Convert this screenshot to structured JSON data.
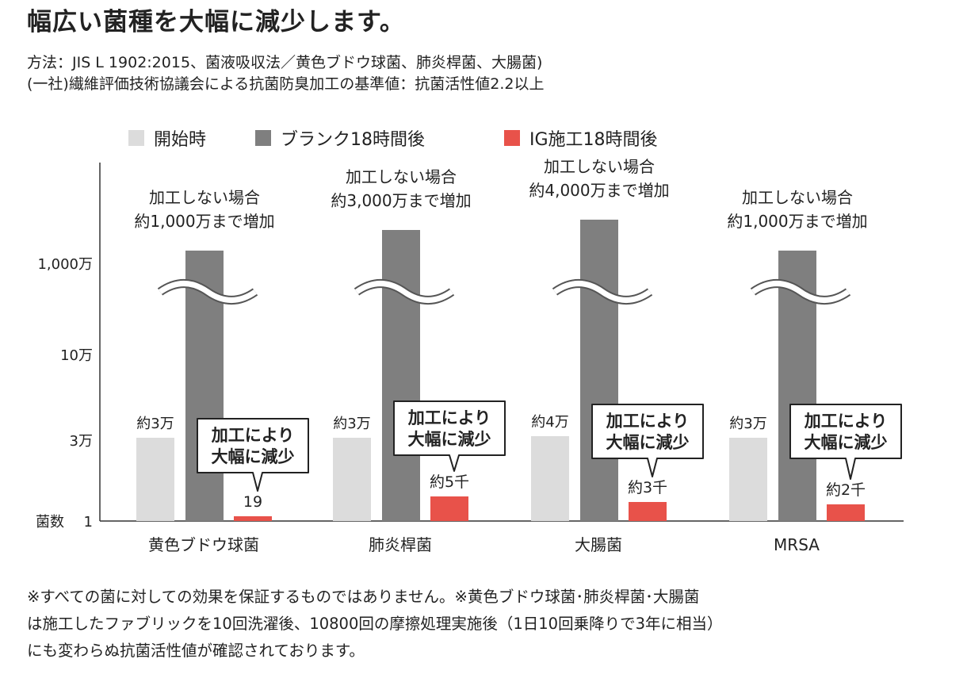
{
  "title": "幅広い菌種を大幅に減少します。",
  "method_lines": [
    "方法：JIS L 1902:2015、菌液吸収法／黄色ブドウ球菌、肺炎桿菌、大腸菌)",
    "(一社)繊維評価技術協議会による抗菌防臭加工の基準値：抗菌活性値2.2以上"
  ],
  "footnote_lines": [
    "※すべての菌に対しての効果を保証するものではありません。※黄色ブドウ球菌･肺炎桿菌･大腸菌",
    "は施工したファブリックを10回洗濯後、10800回の摩擦処理実施後（1日10回乗降りで3年に相当）",
    "にも変わらぬ抗菌活性値が確認されております。"
  ],
  "chart_data": {
    "type": "bar",
    "ylabel": "菌数",
    "y_scale": "broken-log",
    "y_ticks": [
      {
        "value": 1,
        "label": "1"
      },
      {
        "value": 30000,
        "label": "3万"
      },
      {
        "value": 100000,
        "label": "10万"
      },
      {
        "value": 10000000,
        "label": "1,000万"
      }
    ],
    "categories": [
      "黄色ブドウ球菌",
      "肺炎桿菌",
      "大腸菌",
      "MRSA"
    ],
    "series": [
      {
        "name": "開始時",
        "color": "#dcdcdc",
        "values": [
          30000,
          30000,
          40000,
          30000
        ],
        "labels": [
          "約3万",
          "約3万",
          "約4万",
          "約3万"
        ]
      },
      {
        "name": "ブランク18時間後",
        "color": "#7f7f7f",
        "values": [
          10000000,
          30000000,
          40000000,
          10000000
        ],
        "labels": [
          [
            "加工しない場合",
            "約1,000万まで増加"
          ],
          [
            "加工しない場合",
            "約3,000万まで増加"
          ],
          [
            "加工しない場合",
            "約4,000万まで増加"
          ],
          [
            "加工しない場合",
            "約1,000万まで増加"
          ]
        ]
      },
      {
        "name": "IG施工18時間後",
        "color": "#e8524a",
        "values": [
          19,
          5000,
          3000,
          2000
        ],
        "labels": [
          "19",
          "約5千",
          "約3千",
          "約2千"
        ]
      }
    ],
    "callout": [
      "加工により",
      "大幅に減少"
    ],
    "legend": "top"
  }
}
